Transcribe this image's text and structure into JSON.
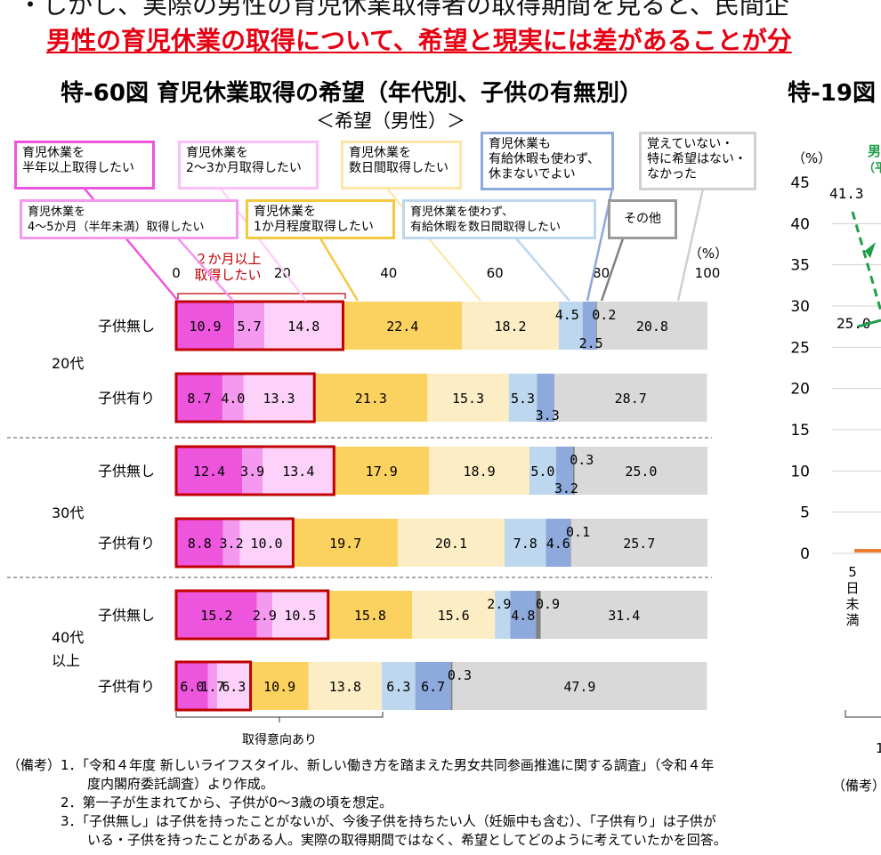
{
  "header": {
    "line1": "・しかし、実際の男性の育児休業取得者の取得期間を見ると、民間企",
    "line2": "男性の育児休業の取得について、希望と現実には差があることが分"
  },
  "chart_title": "特-60図 育児休業取得の希望（年代別、子供の有無別）",
  "chart_subtitle": "＜希望（男性）＞",
  "right_chart": {
    "title": "特-19図",
    "unit": "（%）",
    "yticks": [
      "45",
      "40",
      "35",
      "30",
      "25",
      "20",
      "15",
      "10",
      "5",
      "0"
    ],
    "legend_fragment": "男",
    "legend_fragment2": "（平",
    "point_labels": [
      "41.3",
      "25.0"
    ],
    "xlabel_fragment": "5日未満",
    "bottom_fragment": "1",
    "notes_fragment": "（備考）"
  },
  "legend": [
    {
      "label": "育児休業を\n半年以上取得したい",
      "color": "#ee55dd"
    },
    {
      "label": "育児休業を\n4～5か月（半年未満）取得したい",
      "color": "#f598f0"
    },
    {
      "label": "育児休業を\n2～3か月取得したい",
      "color": "#fcd1fa"
    },
    {
      "label": "育児休業を\n1か月程度取得したい",
      "color": "#fbd160"
    },
    {
      "label": "育児休業を\n数日間取得したい",
      "color": "#fdedc4"
    },
    {
      "label": "育児休業を使わず、\n有給休暇を数日間取得したい",
      "color": "#bdd7ee"
    },
    {
      "label": "育児休業も\n有給休暇も使わず、\n休まないでよい",
      "color": "#8ea9db"
    },
    {
      "label": "その他",
      "color": "#808080"
    },
    {
      "label": "覚えていない・\n特に希望はない・\nなかった",
      "color": "#d9d9d9"
    }
  ],
  "annotation_intent": "２か月以上\n取得したい",
  "axis_caption": "取得意向あり",
  "chart_data": {
    "type": "stacked-bar-horizontal",
    "xlim": [
      0,
      100
    ],
    "xticks": [
      "0",
      "20",
      "40",
      "60",
      "80",
      "100"
    ],
    "x_unit": "（%）",
    "groups": [
      "20代",
      "30代",
      "40代\n以上"
    ],
    "rows": [
      {
        "group": 0,
        "label": "子供無し",
        "values": [
          10.9,
          5.7,
          14.8,
          22.4,
          18.2,
          4.5,
          2.5,
          0.2,
          20.8
        ]
      },
      {
        "group": 0,
        "label": "子供有り",
        "values": [
          8.7,
          4.0,
          13.3,
          21.3,
          15.3,
          5.3,
          3.3,
          0.0,
          28.7
        ]
      },
      {
        "group": 1,
        "label": "子供無し",
        "values": [
          12.4,
          3.9,
          13.4,
          17.9,
          18.9,
          5.0,
          3.2,
          0.3,
          25.0
        ]
      },
      {
        "group": 1,
        "label": "子供有り",
        "values": [
          8.8,
          3.2,
          10.0,
          19.7,
          20.1,
          7.8,
          4.6,
          0.1,
          25.7
        ]
      },
      {
        "group": 2,
        "label": "子供無し",
        "values": [
          15.2,
          2.9,
          10.5,
          15.8,
          15.6,
          2.9,
          4.8,
          0.9,
          31.4
        ]
      },
      {
        "group": 2,
        "label": "子供有り",
        "values": [
          6.0,
          1.7,
          6.3,
          10.9,
          13.8,
          6.3,
          6.7,
          0.3,
          47.9
        ]
      }
    ],
    "value_labels": [
      [
        "10.9",
        "5.7",
        "14.8",
        "22.4",
        "18.2",
        "4.5",
        "2.5",
        "0.2",
        "20.8"
      ],
      [
        "8.7",
        "4.0",
        "13.3",
        "21.3",
        "15.3",
        "5.3",
        "3.3",
        "",
        "28.7"
      ],
      [
        "12.4",
        "3.9",
        "13.4",
        "17.9",
        "18.9",
        "5.0",
        "3.2",
        "0.3",
        "25.0"
      ],
      [
        "8.8",
        "3.2",
        "10.0",
        "19.7",
        "20.1",
        "7.8",
        "4.6",
        "0.1",
        "25.7"
      ],
      [
        "15.2",
        "2.9",
        "10.5",
        "15.8",
        "15.6",
        "2.9",
        "4.8",
        "0.9",
        "31.4"
      ],
      [
        "6.0",
        "1.7",
        "6.3",
        "10.9",
        "13.8",
        "6.3",
        "6.7",
        "0.3",
        "47.9"
      ]
    ]
  },
  "notes": "（備考）1．「令和４年度 新しいライフスタイル、新しい働き方を踏まえた男女共同参画推進に関する調査」（令和４年\n　　　　　　度内閣府委託調査）より作成。\n　　　　2．第一子が生まれてから、子供が0～3歳の頃を想定。\n　　　　3．「子供無し」は子供を持ったことがないが、今後子供を持ちたい人（妊娠中も含む）、「子供有り」は子供が\n　　　　　　いる・子供を持ったことがある人。実際の取得期間ではなく、希望としてどのように考えていたかを回答。"
}
